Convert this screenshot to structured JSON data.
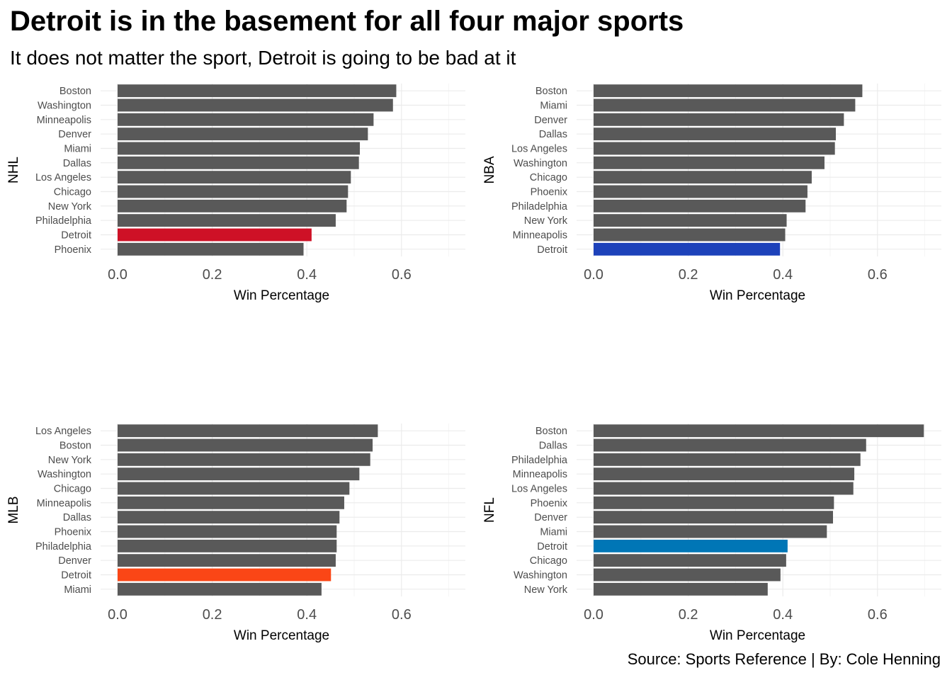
{
  "title": "Detroit is in the basement for all four major sports",
  "subtitle": "It does not matter the sport, Detroit is going to be bad at it",
  "caption": "Source: Sports Reference | By: Cole Henning",
  "colors": {
    "default_bar": "#595959",
    "NHL": "#CE1126",
    "NBA": "#1D42BA",
    "MLB": "#FA4616",
    "NFL": "#0076B6"
  },
  "chart_data": [
    {
      "type": "bar",
      "orientation": "horizontal",
      "panel_label": "NHL",
      "xlabel": "Win Percentage",
      "xlim": [
        0,
        0.7
      ],
      "xticks": [
        "0.0",
        "0.2",
        "0.4",
        "0.6"
      ],
      "highlight": "Detroit",
      "highlight_color": "#CE1126",
      "categories": [
        "Boston",
        "Washington",
        "Minneapolis",
        "Denver",
        "Miami",
        "Dallas",
        "Los Angeles",
        "Chicago",
        "New York",
        "Philadelphia",
        "Detroit",
        "Phoenix"
      ],
      "values": [
        0.589,
        0.582,
        0.541,
        0.529,
        0.512,
        0.51,
        0.493,
        0.487,
        0.484,
        0.461,
        0.41,
        0.393
      ]
    },
    {
      "type": "bar",
      "orientation": "horizontal",
      "panel_label": "NBA",
      "xlabel": "Win Percentage",
      "xlim": [
        0,
        0.7
      ],
      "xticks": [
        "0.0",
        "0.2",
        "0.4",
        "0.6"
      ],
      "highlight": "Detroit",
      "highlight_color": "#1D42BA",
      "categories": [
        "Boston",
        "Miami",
        "Denver",
        "Dallas",
        "Los Angeles",
        "Washington",
        "Chicago",
        "Phoenix",
        "Philadelphia",
        "New York",
        "Minneapolis",
        "Detroit"
      ],
      "values": [
        0.568,
        0.553,
        0.529,
        0.512,
        0.51,
        0.488,
        0.461,
        0.452,
        0.448,
        0.408,
        0.405,
        0.394
      ]
    },
    {
      "type": "bar",
      "orientation": "horizontal",
      "panel_label": "MLB",
      "xlabel": "Win Percentage",
      "xlim": [
        0,
        0.7
      ],
      "xticks": [
        "0.0",
        "0.2",
        "0.4",
        "0.6"
      ],
      "highlight": "Detroit",
      "highlight_color": "#FA4616",
      "categories": [
        "Los Angeles",
        "Boston",
        "New York",
        "Washington",
        "Chicago",
        "Minneapolis",
        "Dallas",
        "Phoenix",
        "Philadelphia",
        "Denver",
        "Detroit",
        "Miami"
      ],
      "values": [
        0.55,
        0.539,
        0.534,
        0.511,
        0.49,
        0.479,
        0.469,
        0.463,
        0.463,
        0.461,
        0.451,
        0.431
      ]
    },
    {
      "type": "bar",
      "orientation": "horizontal",
      "panel_label": "NFL",
      "xlabel": "Win Percentage",
      "xlim": [
        0,
        0.7
      ],
      "xticks": [
        "0.0",
        "0.2",
        "0.4",
        "0.6"
      ],
      "highlight": "Detroit",
      "highlight_color": "#0076B6",
      "categories": [
        "Boston",
        "Dallas",
        "Philadelphia",
        "Minneapolis",
        "Los Angeles",
        "Phoenix",
        "Denver",
        "Miami",
        "Detroit",
        "Chicago",
        "Washington",
        "New York"
      ],
      "values": [
        0.698,
        0.576,
        0.564,
        0.551,
        0.549,
        0.508,
        0.506,
        0.493,
        0.41,
        0.407,
        0.395,
        0.368
      ]
    }
  ]
}
